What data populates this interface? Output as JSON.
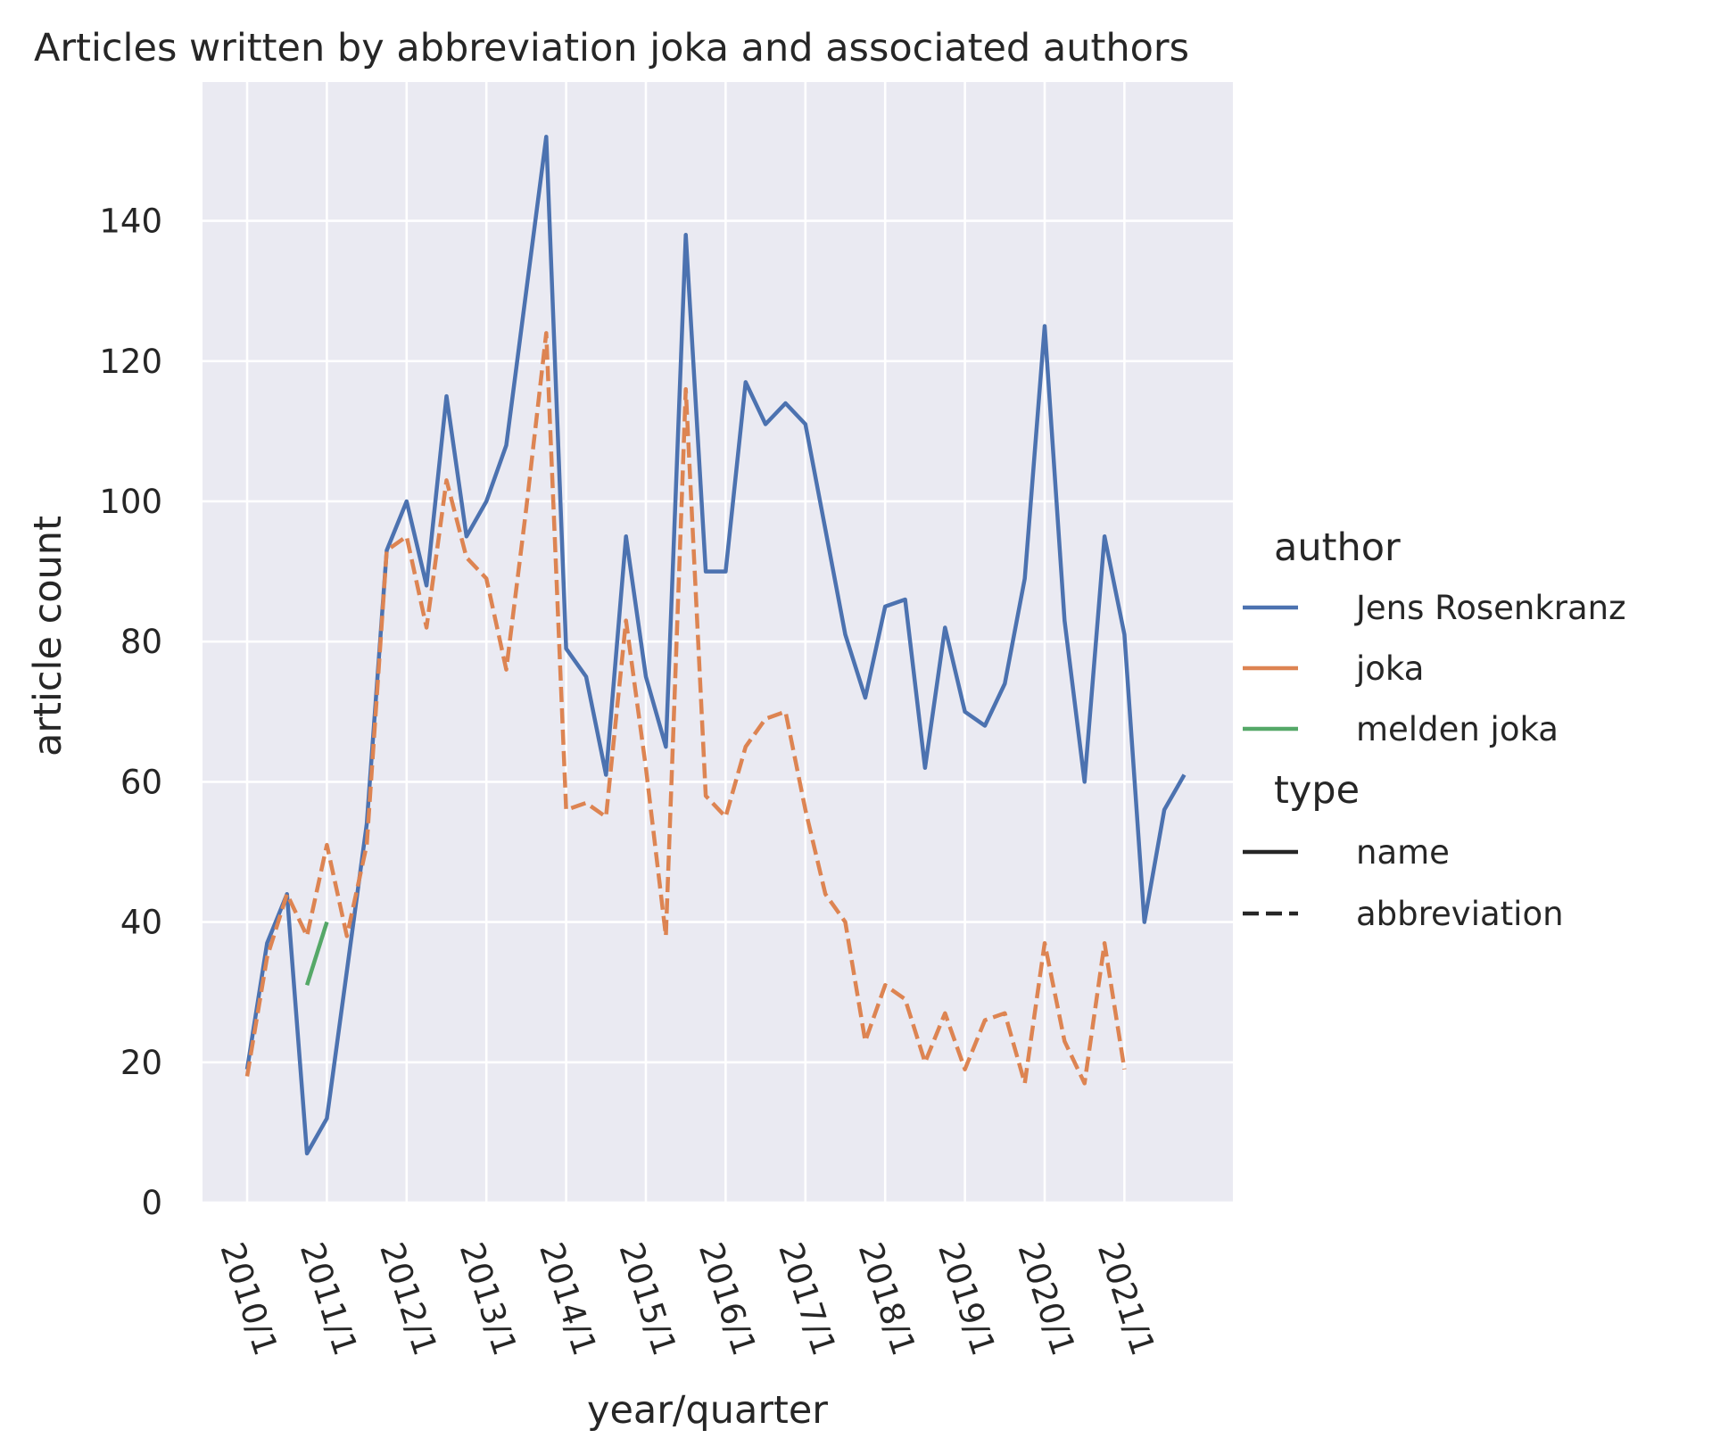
{
  "chart_data": {
    "type": "line",
    "title": "Articles written by abbreviation joka and associated authors",
    "xlabel": "year/quarter",
    "ylabel": "article count",
    "ylim": [
      0,
      160
    ],
    "yticks": [
      0,
      20,
      40,
      60,
      80,
      100,
      120,
      140
    ],
    "xticks": [
      "2010/1",
      "2011/1",
      "2012/1",
      "2013/1",
      "2014/1",
      "2015/1",
      "2016/1",
      "2017/1",
      "2018/1",
      "2019/1",
      "2020/1",
      "2021/1"
    ],
    "x_unit": "quarters starting at 2010/1",
    "grid": true,
    "background": "#eaeaf2",
    "legend_placement": "right, outside plot",
    "legend": {
      "hue_title": "author",
      "style_title": "type",
      "authors": [
        "Jens Rosenkranz",
        "joka",
        "melden joka"
      ],
      "types": [
        "name",
        "abbreviation"
      ]
    },
    "series": [
      {
        "name": "Jens Rosenkranz",
        "type": "name",
        "color": "#4c72b0",
        "dash": "solid",
        "x": [
          "2010/1",
          "2010/2",
          "2010/3",
          "2010/4",
          "2011/1",
          "2011/2",
          "2011/3",
          "2011/4",
          "2012/1",
          "2012/2",
          "2012/3",
          "2012/4",
          "2013/1",
          "2013/2",
          "2013/3",
          "2013/4",
          "2014/1",
          "2014/2",
          "2014/3",
          "2014/4",
          "2015/1",
          "2015/2",
          "2015/3",
          "2015/4",
          "2016/1",
          "2016/2",
          "2016/3",
          "2016/4",
          "2017/1",
          "2017/2",
          "2017/3",
          "2017/4",
          "2018/1",
          "2018/2",
          "2018/3",
          "2018/4",
          "2019/1",
          "2019/2",
          "2019/3",
          "2019/4",
          "2020/1",
          "2020/2",
          "2020/3",
          "2020/4",
          "2021/1",
          "2021/2",
          "2021/3",
          "2021/4"
        ],
        "values": [
          19,
          37,
          44,
          7,
          12,
          33,
          54,
          93,
          100,
          88,
          115,
          95,
          100,
          108,
          130,
          152,
          79,
          75,
          61,
          95,
          75,
          65,
          138,
          90,
          90,
          117,
          111,
          114,
          111,
          96,
          81,
          72,
          85,
          86,
          62,
          82,
          70,
          68,
          74,
          89,
          125,
          83,
          60,
          95,
          81,
          40,
          56,
          61
        ]
      },
      {
        "name": "joka",
        "type": "abbreviation",
        "color": "#dd8452",
        "dash": "dashed",
        "x": [
          "2010/1",
          "2010/2",
          "2010/3",
          "2010/4",
          "2011/1",
          "2011/2",
          "2011/3",
          "2011/4",
          "2012/1",
          "2012/2",
          "2012/3",
          "2012/4",
          "2013/1",
          "2013/2",
          "2013/3",
          "2013/4",
          "2014/1",
          "2014/2",
          "2014/3",
          "2014/4",
          "2015/1",
          "2015/2",
          "2015/3",
          "2015/4",
          "2016/1",
          "2016/2",
          "2016/3",
          "2016/4",
          "2017/1",
          "2017/2",
          "2017/3",
          "2017/4",
          "2018/1",
          "2018/2",
          "2018/3",
          "2018/4",
          "2019/1",
          "2019/2",
          "2019/3",
          "2019/4",
          "2020/1",
          "2020/2",
          "2020/3",
          "2020/4",
          "2021/1"
        ],
        "values": [
          18,
          35,
          44,
          38,
          51,
          38,
          51,
          93,
          95,
          82,
          103,
          92,
          89,
          76,
          99,
          124,
          56,
          57,
          55,
          83,
          62,
          38,
          116,
          58,
          55,
          65,
          69,
          70,
          56,
          44,
          40,
          23,
          31,
          29,
          20,
          27,
          19,
          26,
          27,
          17,
          37,
          23,
          17,
          37,
          19
        ]
      },
      {
        "name": "melden joka",
        "type": "name",
        "color": "#55a868",
        "dash": "solid",
        "x": [
          "2010/4",
          "2011/1"
        ],
        "values": [
          31,
          40
        ]
      }
    ]
  }
}
